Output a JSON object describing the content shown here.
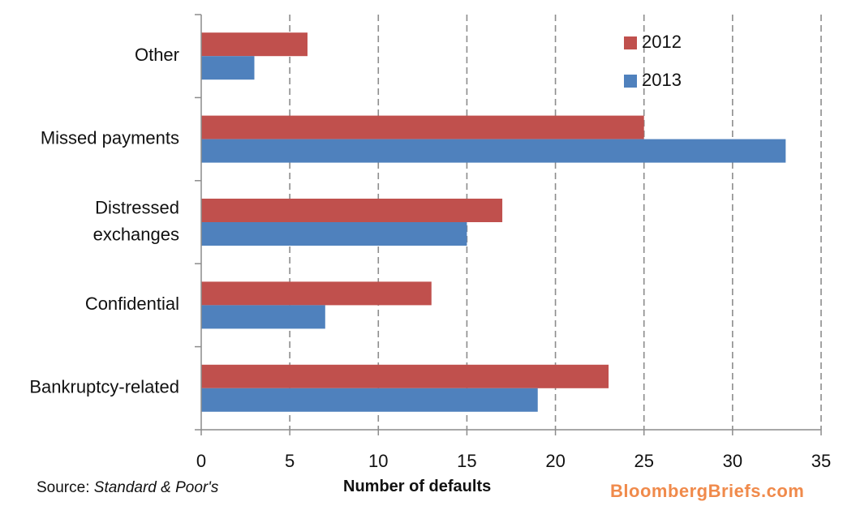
{
  "chart_data": {
    "type": "bar",
    "orientation": "horizontal",
    "categories": [
      "Other",
      "Missed payments",
      "Distressed exchanges",
      "Confidential",
      "Bankruptcy-related"
    ],
    "category_lines": [
      [
        "Other"
      ],
      [
        "Missed payments"
      ],
      [
        "Distressed",
        "exchanges"
      ],
      [
        "Confidential"
      ],
      [
        "Bankruptcy-related"
      ]
    ],
    "series": [
      {
        "name": "2012",
        "color": "#c0504d",
        "values": [
          6,
          25,
          17,
          13,
          23
        ]
      },
      {
        "name": "2013",
        "color": "#4f81bd",
        "values": [
          3,
          33,
          15,
          7,
          19
        ]
      }
    ],
    "xlabel": "Number of defaults",
    "xlim": [
      0,
      35
    ],
    "xticks": [
      0,
      5,
      10,
      15,
      20,
      25,
      30,
      35
    ],
    "grid": "vertical dashed",
    "legend_position": "top-right"
  },
  "footer": {
    "source_prefix": "Source: ",
    "source_name": "Standard & Poor's",
    "brand": "BloombergBriefs.com"
  }
}
